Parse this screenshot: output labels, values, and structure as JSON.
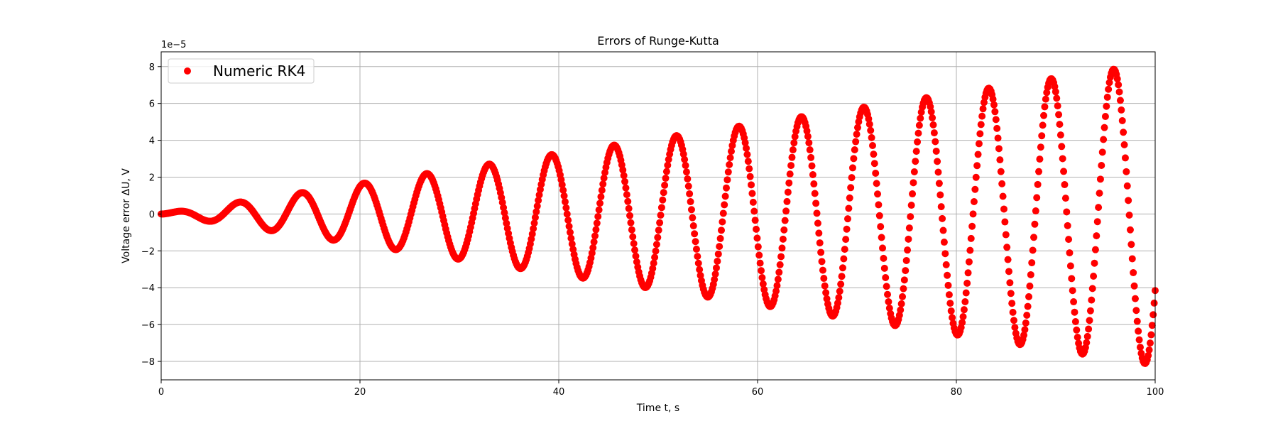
{
  "chart_data": {
    "type": "scatter",
    "title": "Errors of Runge-Kutta",
    "xlabel": "Time t, s",
    "ylabel": "Voltage error ΔU, V",
    "offset_label": "1e−5",
    "xlim": [
      0,
      100
    ],
    "ylim": [
      -9,
      8.8
    ],
    "y_scale_factor": 1e-05,
    "grid": true,
    "legend_position": "top-left",
    "xticks": [
      0,
      20,
      40,
      60,
      80,
      100
    ],
    "yticks": [
      -8,
      -6,
      -4,
      -2,
      0,
      2,
      4,
      6,
      8
    ],
    "series": [
      {
        "name": "Numeric RK4",
        "color": "#ff0000",
        "marker": "circle",
        "x_start": 0,
        "x_end": 100,
        "n_points": 1000,
        "period": 6.2832,
        "amplitude_per_second": 0.082,
        "peaks": [
          {
            "x": 1.9,
            "y": 0.15
          },
          {
            "x": 8.1,
            "y": 0.62
          },
          {
            "x": 14.3,
            "y": 1.15
          },
          {
            "x": 20.6,
            "y": 1.65
          },
          {
            "x": 26.9,
            "y": 2.2
          },
          {
            "x": 33.2,
            "y": 2.7
          },
          {
            "x": 39.5,
            "y": 3.25
          },
          {
            "x": 45.8,
            "y": 3.75
          },
          {
            "x": 52.1,
            "y": 4.3
          },
          {
            "x": 58.3,
            "y": 4.8
          },
          {
            "x": 64.6,
            "y": 5.3
          },
          {
            "x": 70.9,
            "y": 5.85
          },
          {
            "x": 77.2,
            "y": 6.35
          },
          {
            "x": 83.5,
            "y": 6.9
          },
          {
            "x": 89.7,
            "y": 7.4
          },
          {
            "x": 96.0,
            "y": 7.95
          }
        ],
        "troughs": [
          {
            "x": 5.0,
            "y": -0.35
          },
          {
            "x": 11.2,
            "y": -0.9
          },
          {
            "x": 17.5,
            "y": -1.4
          },
          {
            "x": 23.8,
            "y": -1.95
          },
          {
            "x": 30.1,
            "y": -2.45
          },
          {
            "x": 36.4,
            "y": -3.0
          },
          {
            "x": 42.6,
            "y": -3.5
          },
          {
            "x": 48.9,
            "y": -4.05
          },
          {
            "x": 55.2,
            "y": -4.55
          },
          {
            "x": 61.5,
            "y": -5.1
          },
          {
            "x": 67.8,
            "y": -5.6
          },
          {
            "x": 74.0,
            "y": -6.15
          },
          {
            "x": 80.3,
            "y": -6.65
          },
          {
            "x": 86.6,
            "y": -7.2
          },
          {
            "x": 92.9,
            "y": -7.7
          },
          {
            "x": 99.2,
            "y": -8.2
          }
        ]
      }
    ]
  }
}
